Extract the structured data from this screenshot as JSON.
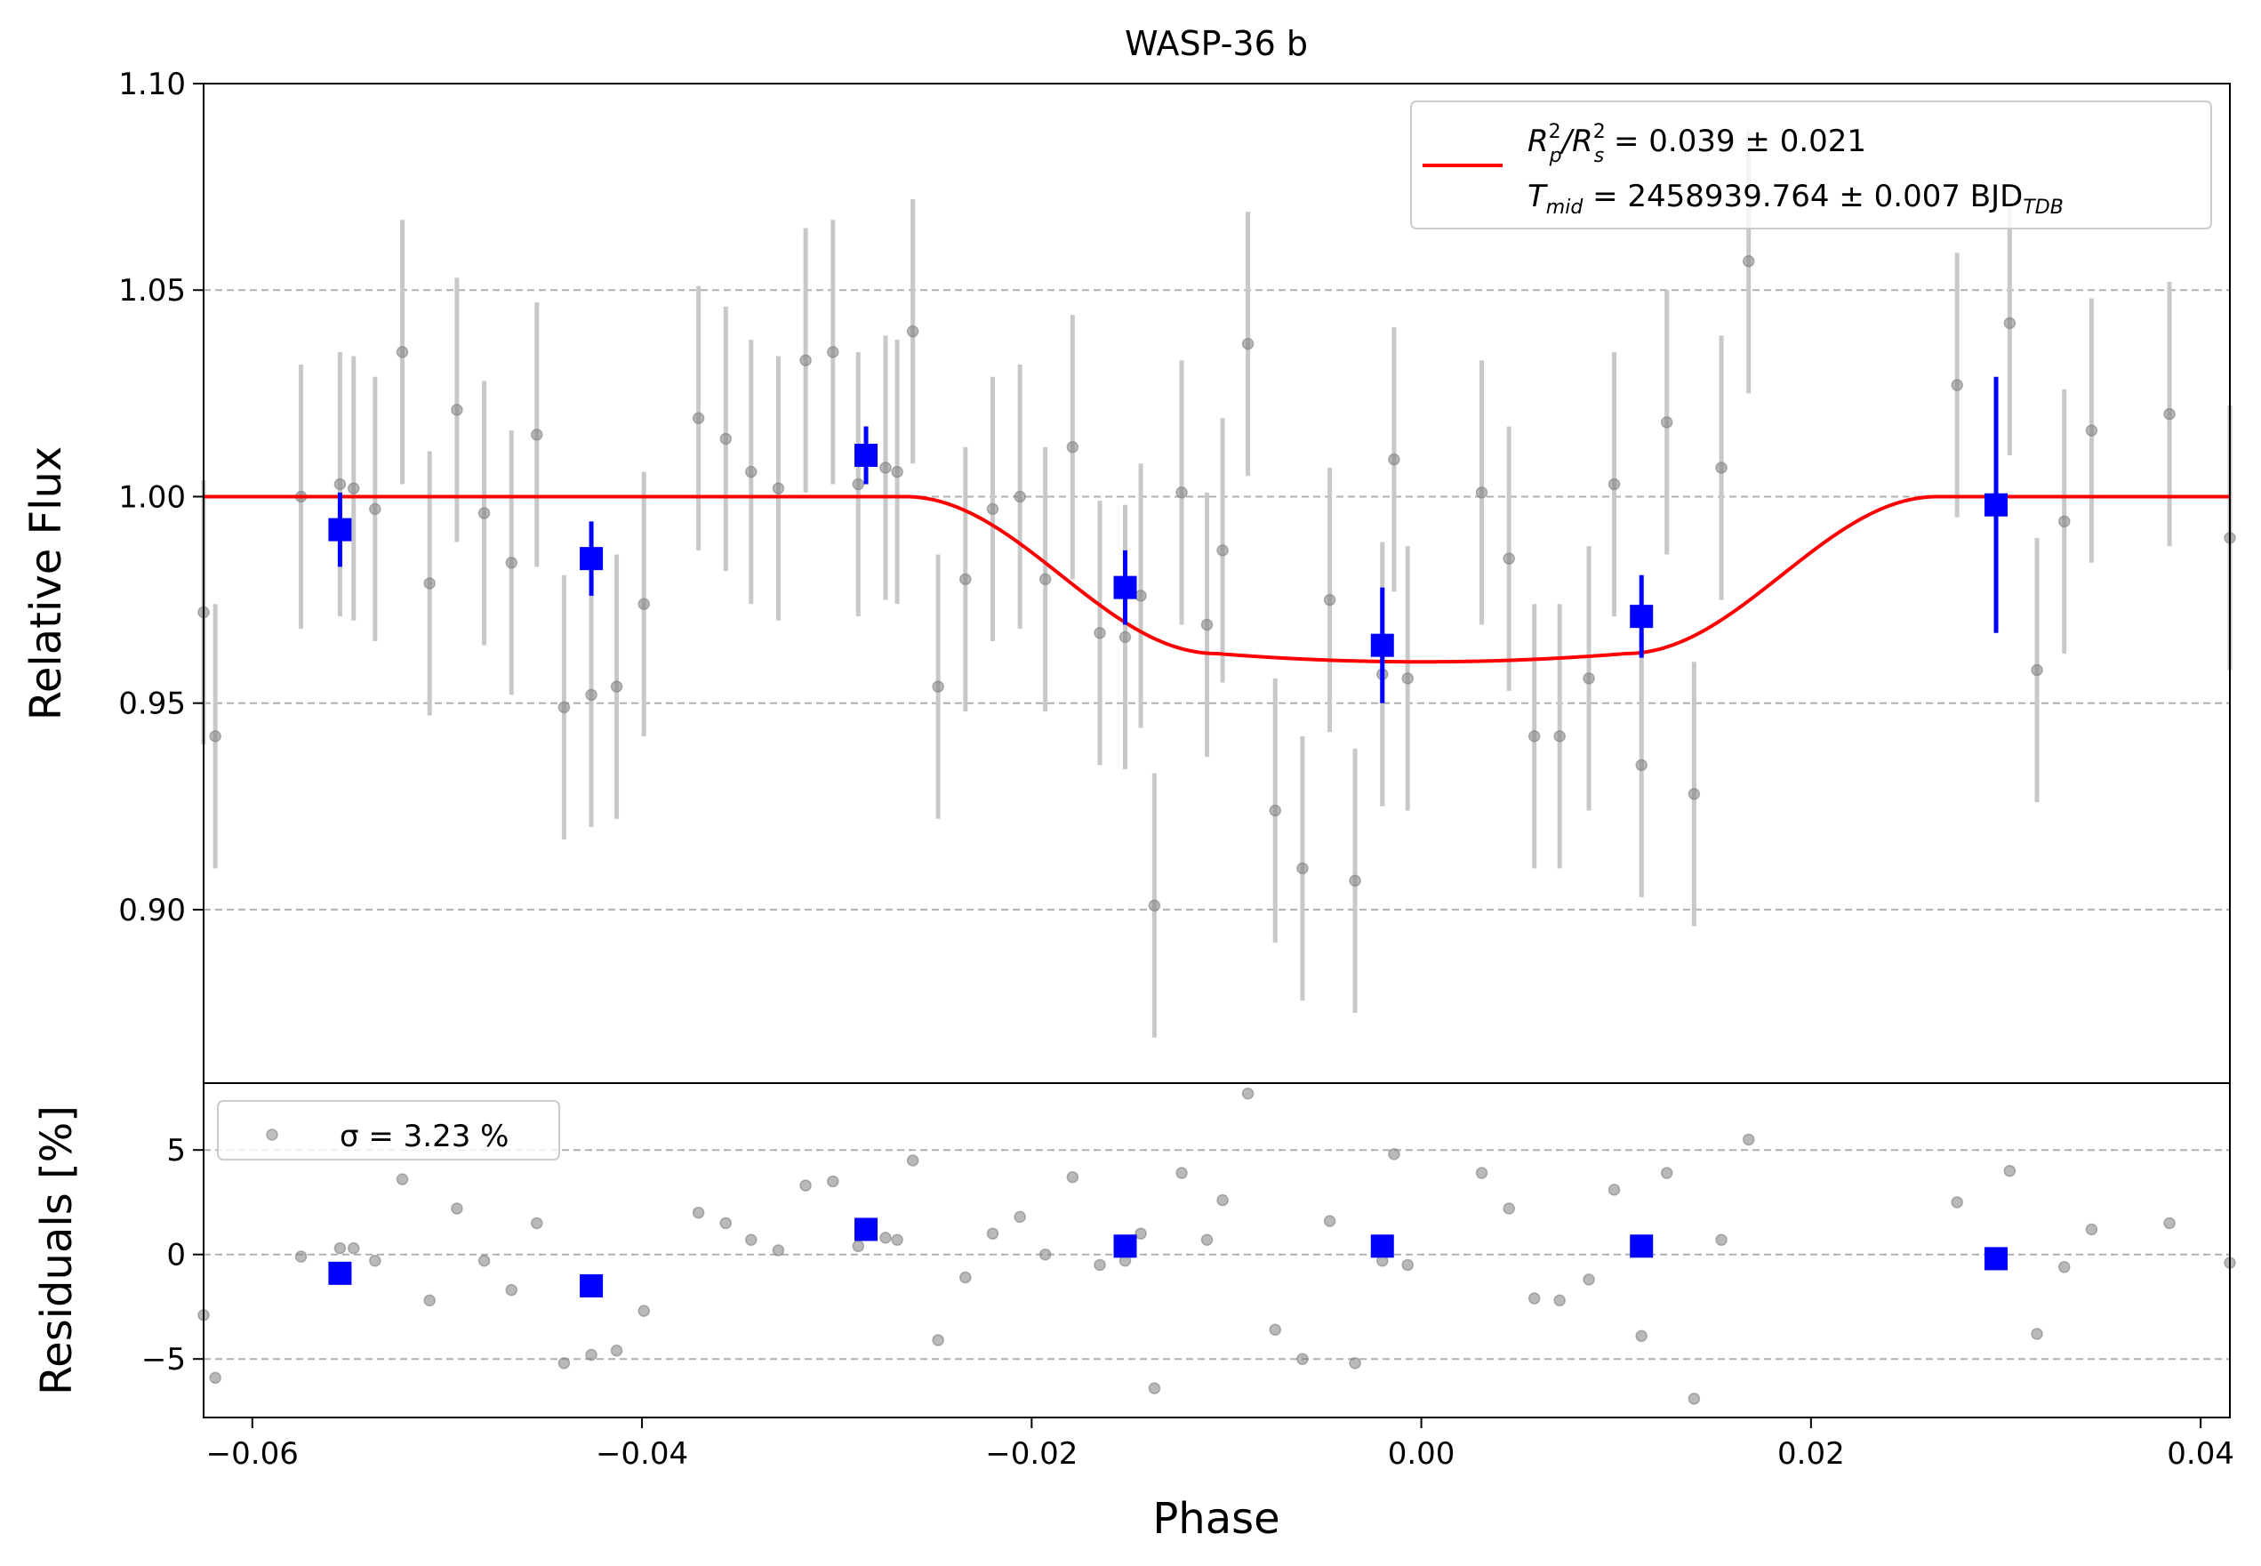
{
  "chart_data": [
    {
      "type": "scatter",
      "panel": "top",
      "title": "WASP-36 b",
      "xlabel": "",
      "ylabel": "Relative Flux",
      "xlim": [
        -0.0625,
        0.0415
      ],
      "ylim": [
        0.858,
        1.1
      ],
      "yticks": [
        0.9,
        0.95,
        1.0,
        1.05,
        1.1
      ],
      "ytick_labels": [
        "0.90",
        "0.95",
        "1.00",
        "1.05",
        "1.10"
      ],
      "grid": "horizontal-dashed",
      "legend_position": "top-right",
      "legend": {
        "line1": {
          "a": "R",
          "a_sup": "2",
          "a_sub": "p",
          "b": "/R",
          "b_sup": "2",
          "b_sub": "s",
          "rest": " = 0.039 ± 0.021"
        },
        "line2": {
          "a": "T",
          "a_sub": "mid",
          "rest": " = 2458939.764 ± 0.007 BJD",
          "rest_sub": "TDB"
        }
      },
      "raw": {
        "color": "#808080",
        "err_color": "#c8c8c8",
        "yerr": 0.032,
        "x": [
          -0.0625,
          -0.0619,
          -0.0575,
          -0.0555,
          -0.0548,
          -0.0537,
          -0.0523,
          -0.0509,
          -0.0495,
          -0.0481,
          -0.0467,
          -0.0454,
          -0.044,
          -0.0426,
          -0.0413,
          -0.0399,
          -0.0371,
          -0.0357,
          -0.0344,
          -0.033,
          -0.0316,
          -0.0302,
          -0.0289,
          -0.0275,
          -0.0269,
          -0.0261,
          -0.0248,
          -0.0234,
          -0.022,
          -0.0206,
          -0.0193,
          -0.0179,
          -0.0165,
          -0.0152,
          -0.0144,
          -0.0137,
          -0.0123,
          -0.011,
          -0.0102,
          -0.0089,
          -0.0075,
          -0.0061,
          -0.0047,
          -0.0034,
          -0.002,
          -0.0014,
          -0.0007,
          0.0031,
          0.0045,
          0.0058,
          0.0071,
          0.0086,
          0.0099,
          0.0113,
          0.0126,
          0.014,
          0.0154,
          0.0168,
          0.0275,
          0.0302,
          0.0316,
          0.033,
          0.0344,
          0.0384,
          0.0415
        ],
        "y": [
          0.972,
          0.942,
          1.0,
          1.003,
          1.002,
          0.997,
          1.035,
          0.979,
          1.021,
          0.996,
          0.984,
          1.015,
          0.949,
          0.952,
          0.954,
          0.974,
          1.019,
          1.014,
          1.006,
          1.002,
          1.033,
          1.035,
          1.003,
          1.007,
          1.006,
          1.04,
          0.954,
          0.98,
          0.997,
          1.0,
          0.98,
          1.012,
          0.967,
          0.966,
          0.976,
          0.901,
          1.001,
          0.969,
          0.987,
          1.037,
          0.924,
          0.91,
          0.975,
          0.907,
          0.957,
          1.009,
          0.956,
          1.001,
          0.985,
          0.942,
          0.942,
          0.956,
          1.003,
          0.935,
          1.018,
          0.928,
          1.007,
          1.057,
          1.027,
          1.042,
          0.958,
          0.994,
          1.016,
          1.02,
          0.99
        ]
      },
      "binned": {
        "color": "#0000ff",
        "x": [
          -0.0555,
          -0.0426,
          -0.0285,
          -0.0152,
          -0.002,
          0.0113,
          0.0295
        ],
        "y": [
          0.992,
          0.985,
          1.01,
          0.978,
          0.964,
          0.971,
          0.998
        ],
        "yerr": [
          0.009,
          0.009,
          0.007,
          0.009,
          0.014,
          0.01,
          0.031
        ]
      },
      "model": {
        "color": "#ff0000",
        "t_mid_phase": 0.0,
        "depth": 0.04,
        "contact_outer": 0.0265,
        "contact_inner": 0.0105
      }
    },
    {
      "type": "scatter",
      "panel": "bottom",
      "xlabel": "Phase",
      "ylabel": "Residuals [%]",
      "xlim": [
        -0.0625,
        0.0415
      ],
      "ylim": [
        -7.8,
        8.2
      ],
      "xticks": [
        -0.06,
        -0.04,
        -0.02,
        0.0,
        0.02,
        0.04
      ],
      "xtick_labels": [
        "−0.06",
        "−0.04",
        "−0.02",
        "0.00",
        "0.02",
        "0.04"
      ],
      "yticks": [
        -5,
        0,
        5
      ],
      "ytick_labels": [
        "−5",
        "0",
        "5"
      ],
      "grid": "horizontal-dashed",
      "legend_position": "top-left",
      "legend_text": "σ = 3.23 %",
      "raw": {
        "color": "#808080",
        "x": [
          -0.0625,
          -0.0619,
          -0.0575,
          -0.0555,
          -0.0548,
          -0.0537,
          -0.0523,
          -0.0509,
          -0.0495,
          -0.0481,
          -0.0467,
          -0.0454,
          -0.044,
          -0.0426,
          -0.0413,
          -0.0399,
          -0.0371,
          -0.0357,
          -0.0344,
          -0.033,
          -0.0316,
          -0.0302,
          -0.0289,
          -0.0275,
          -0.0269,
          -0.0261,
          -0.0248,
          -0.0234,
          -0.022,
          -0.0206,
          -0.0193,
          -0.0179,
          -0.0165,
          -0.0152,
          -0.0144,
          -0.0137,
          -0.0123,
          -0.011,
          -0.0102,
          -0.0089,
          -0.0075,
          -0.0061,
          -0.0047,
          -0.0034,
          -0.002,
          -0.0014,
          -0.0007,
          0.0031,
          0.0045,
          0.0058,
          0.0071,
          0.0086,
          0.0099,
          0.0113,
          0.0126,
          0.014,
          0.0154,
          0.0168,
          0.0275,
          0.0302,
          0.0316,
          0.033,
          0.0344,
          0.0384,
          0.0415
        ],
        "y": [
          -2.9,
          -5.9,
          -0.1,
          0.3,
          0.3,
          -0.3,
          3.6,
          -2.2,
          2.2,
          -0.3,
          -1.7,
          1.5,
          -5.2,
          -4.8,
          -4.6,
          -2.7,
          2.0,
          1.5,
          0.7,
          0.2,
          3.3,
          3.5,
          0.4,
          0.8,
          0.7,
          4.5,
          -4.1,
          -1.1,
          1.0,
          1.8,
          0.0,
          3.7,
          -0.5,
          -0.3,
          1.0,
          -6.4,
          3.9,
          0.7,
          2.6,
          7.7,
          -3.6,
          -5.0,
          1.6,
          -5.2,
          -0.3,
          4.8,
          -0.5,
          3.9,
          2.2,
          -2.1,
          -2.2,
          -1.2,
          3.1,
          -3.9,
          3.9,
          -6.9,
          0.7,
          5.5,
          2.5,
          4.0,
          -3.8,
          -0.6,
          1.2,
          1.5,
          -0.4
        ]
      },
      "binned": {
        "color": "#0000ff",
        "x": [
          -0.0555,
          -0.0426,
          -0.0285,
          -0.0152,
          -0.002,
          0.0113,
          0.0295
        ],
        "y": [
          -0.9,
          -1.5,
          1.2,
          0.4,
          0.4,
          0.4,
          -0.2
        ]
      }
    }
  ]
}
